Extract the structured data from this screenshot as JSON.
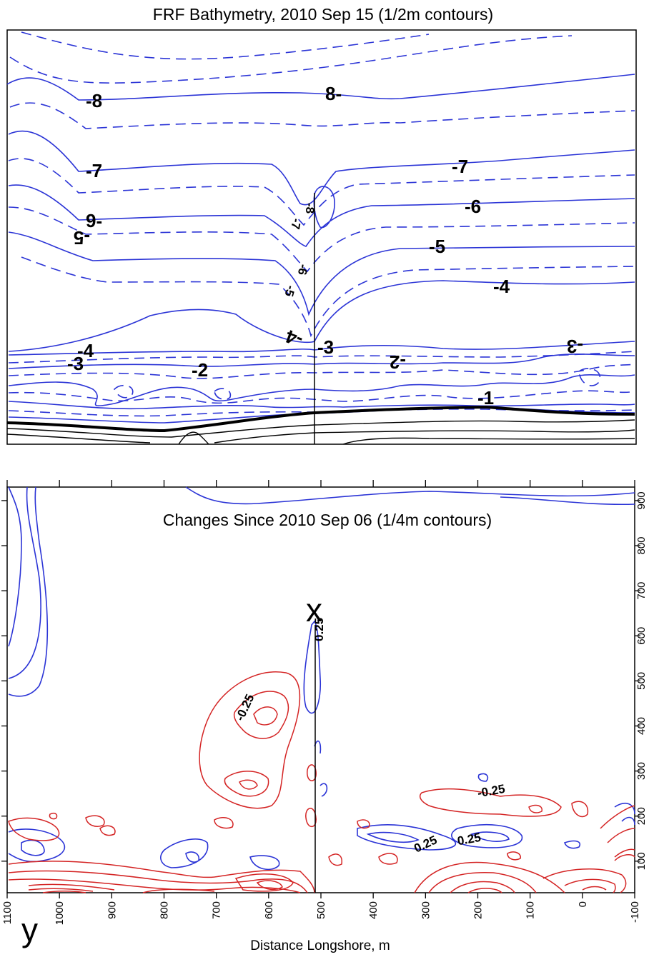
{
  "chart_data": [
    {
      "type": "contour",
      "title": "FRF Bathymetry, 2010 Sep 15 (1/2m contours)",
      "contour_labels": [
        "-8",
        "8-",
        "-7",
        "-7",
        "9-",
        "-6",
        "-5",
        "-5",
        "-4",
        "-4",
        "-4",
        "-3",
        "-3",
        "-3",
        "-2",
        "-2",
        "-1",
        "-8",
        "-7",
        "-6",
        "-5"
      ],
      "levels_min": -8,
      "levels_max": -1,
      "contour_interval_m": 0.5
    },
    {
      "type": "contour",
      "title": "Changes Since 2010 Sep 06 (1/4m contours)",
      "xlabel": "Distance Longshore, m",
      "x_ticks": [
        "1100",
        "1000",
        "900",
        "800",
        "700",
        "600",
        "500",
        "400",
        "300",
        "200",
        "100",
        "0",
        "-100"
      ],
      "x_range": [
        1100,
        -100
      ],
      "y_ticks": [
        "100",
        "200",
        "300",
        "400",
        "500",
        "600",
        "700",
        "800",
        "900"
      ],
      "y_range": [
        30,
        930
      ],
      "contour_labels": [
        "0.25",
        "-0.25",
        "-0.25",
        "0.25",
        "0.25"
      ],
      "series": [
        {
          "name": "",
          "color": "#2b34d6"
        },
        {
          "name": "",
          "color": "#d42424"
        }
      ]
    }
  ],
  "annotations": {
    "x_marker": "x",
    "y_marker": "y"
  }
}
